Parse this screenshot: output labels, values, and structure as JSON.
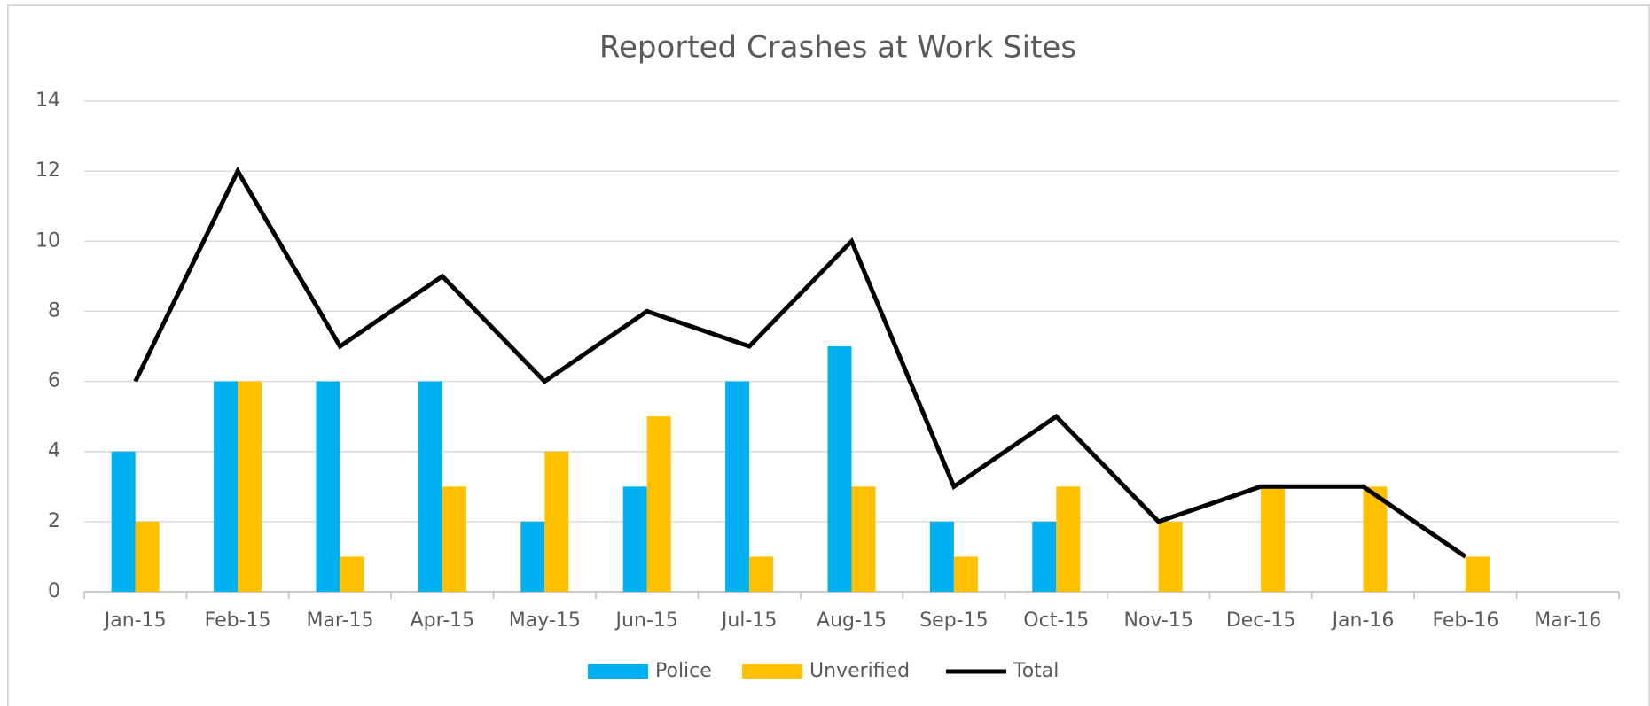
{
  "chart_data": {
    "type": "bar-line",
    "title": "Reported Crashes at Work Sites",
    "categories": [
      "Jan-15",
      "Feb-15",
      "Mar-15",
      "Apr-15",
      "May-15",
      "Jun-15",
      "Jul-15",
      "Aug-15",
      "Sep-15",
      "Oct-15",
      "Nov-15",
      "Dec-15",
      "Jan-16",
      "Feb-16",
      "Mar-16"
    ],
    "series": [
      {
        "name": "Police",
        "type": "bar",
        "color": "#00b0f0",
        "values": [
          4,
          6,
          6,
          6,
          2,
          3,
          6,
          7,
          2,
          2,
          0,
          0,
          0,
          0,
          null
        ]
      },
      {
        "name": "Unverified",
        "type": "bar",
        "color": "#ffc000",
        "values": [
          2,
          6,
          1,
          3,
          4,
          5,
          1,
          3,
          1,
          3,
          2,
          3,
          3,
          1,
          null
        ]
      },
      {
        "name": "Total",
        "type": "line",
        "color": "#000000",
        "values": [
          6,
          12,
          7,
          9,
          6,
          8,
          7,
          10,
          3,
          5,
          2,
          3,
          3,
          1,
          null
        ]
      }
    ],
    "ylim": [
      0,
      14
    ],
    "yticks": [
      0,
      2,
      4,
      6,
      8,
      10,
      12,
      14
    ],
    "grid": true,
    "legend": "bottom"
  }
}
